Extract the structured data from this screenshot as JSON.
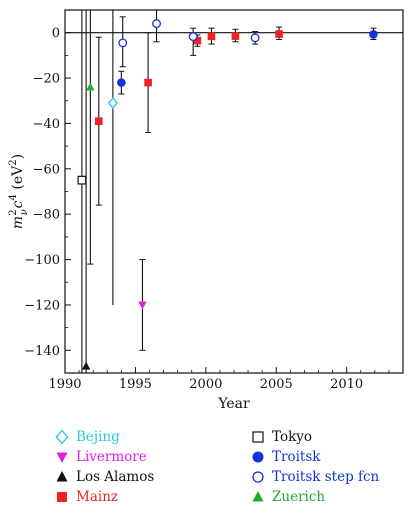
{
  "chart_data": {
    "type": "scatter",
    "title": "",
    "xlabel": "Year",
    "ylabel_parts": {
      "base": "m",
      "sub": "ν",
      "sup": "2",
      "mid": "c",
      "sup2": "4",
      "unit_open": " (eV",
      "unit_sup": "2",
      "unit_close": ")"
    },
    "xlim": [
      1990,
      2014
    ],
    "ylim": [
      -150,
      10
    ],
    "xticks": [
      1990,
      1995,
      2000,
      2005,
      2010
    ],
    "yticks": [
      0,
      -20,
      -40,
      -60,
      -80,
      -100,
      -120,
      -140
    ],
    "zero_line": true,
    "grid": false,
    "legend_placement": "below",
    "series": [
      {
        "name": "Bejing",
        "marker": "diamond-open",
        "color": "#22ccdd",
        "legend_color": "#22ccdd",
        "points": [
          {
            "x": 1993.4,
            "y": -31,
            "ylo": -31,
            "yhi": -31
          }
        ]
      },
      {
        "name": "Livermore",
        "marker": "triangle-down-filled",
        "color": "#dd22dd",
        "legend_color": "#dd22dd",
        "points": [
          {
            "x": 1995.5,
            "y": -120,
            "ylo": -140,
            "yhi": -100
          }
        ]
      },
      {
        "name": "Los Alamos",
        "marker": "triangle-up-filled",
        "color": "#111111",
        "legend_color": "#111111",
        "points": [
          {
            "x": 1991.5,
            "y": -147,
            "ylo": -150,
            "yhi": 10
          }
        ]
      },
      {
        "name": "Mainz",
        "marker": "square-filled",
        "color": "#ee2222",
        "legend_color": "#ee2222",
        "points": [
          {
            "x": 1992.4,
            "y": -39,
            "ylo": -76,
            "yhi": -2
          },
          {
            "x": 1995.9,
            "y": -22,
            "ylo": -44,
            "yhi": 0
          },
          {
            "x": 1999.4,
            "y": -3.5,
            "ylo": -6,
            "yhi": -1
          },
          {
            "x": 2000.4,
            "y": -1.6,
            "ylo": -5,
            "yhi": 2
          },
          {
            "x": 2002.1,
            "y": -1.5,
            "ylo": -4,
            "yhi": 1.5
          },
          {
            "x": 2005.2,
            "y": -0.6,
            "ylo": -3,
            "yhi": 2.5
          }
        ]
      },
      {
        "name": "Tokyo",
        "marker": "square-open",
        "color": "#111111",
        "legend_color": "#111111",
        "points": [
          {
            "x": 1991.2,
            "y": -65,
            "ylo": -150,
            "yhi": 10
          }
        ]
      },
      {
        "name": "Troitsk",
        "marker": "circle-filled",
        "color": "#1133dd",
        "legend_color": "#1133dd",
        "points": [
          {
            "x": 1994.0,
            "y": -22,
            "ylo": -27,
            "yhi": -17
          },
          {
            "x": 2011.9,
            "y": -0.7,
            "ylo": -3,
            "yhi": 2
          }
        ]
      },
      {
        "name": "Troitsk step fcn",
        "marker": "circle-open",
        "color": "#1133dd",
        "legend_color": "#1133dd",
        "points": [
          {
            "x": 1994.1,
            "y": -4.5,
            "ylo": -15,
            "yhi": 7
          },
          {
            "x": 1996.5,
            "y": 4,
            "ylo": -4,
            "yhi": 10
          },
          {
            "x": 1999.1,
            "y": -1.7,
            "ylo": -10,
            "yhi": 2
          },
          {
            "x": 2003.5,
            "y": -2.3,
            "ylo": -5,
            "yhi": 0.5
          }
        ]
      },
      {
        "name": "Zuerich",
        "marker": "triangle-up-filled",
        "color": "#22aa33",
        "legend_color": "#22aa33",
        "points": [
          {
            "x": 1991.8,
            "y": -24,
            "ylo": -102,
            "yhi": 10
          }
        ]
      }
    ],
    "vertical_lines": [
      {
        "x": 1993.4,
        "ylo": -120,
        "yhi": 10,
        "color": "#111111"
      }
    ],
    "legend_columns": [
      [
        "Bejing",
        "Livermore",
        "Los Alamos",
        "Mainz"
      ],
      [
        "Tokyo",
        "Troitsk",
        "Troitsk step fcn",
        "Zuerich"
      ]
    ]
  }
}
